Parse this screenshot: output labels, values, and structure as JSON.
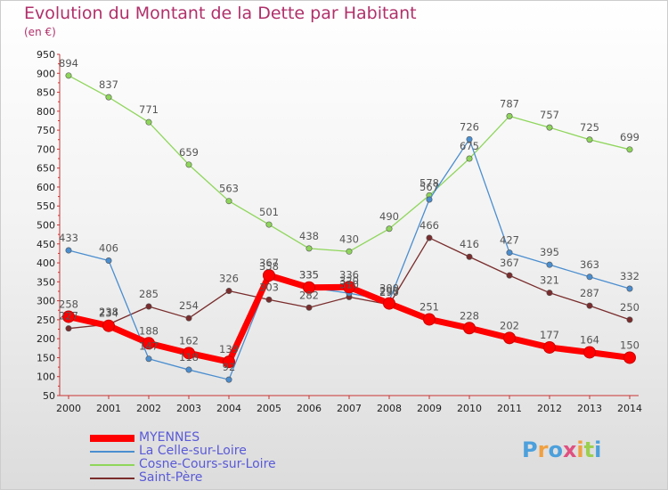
{
  "title": "Evolution du Montant de la Dette par Habitant",
  "subtitle": "(en €)",
  "chart_data": {
    "type": "line",
    "x": [
      "2000",
      "2001",
      "2002",
      "2003",
      "2004",
      "2005",
      "2006",
      "2007",
      "2008",
      "2009",
      "2010",
      "2011",
      "2012",
      "2013",
      "2014"
    ],
    "ylim": [
      50,
      950
    ],
    "yticks": [
      50,
      100,
      150,
      200,
      250,
      300,
      350,
      400,
      450,
      500,
      550,
      600,
      650,
      700,
      750,
      800,
      850,
      900,
      950
    ],
    "grid": false,
    "legend_position": "bottom-left",
    "series": [
      {
        "name": "MYENNES",
        "color": "#ff0000",
        "values": [
          258,
          234,
          188,
          162,
          139,
          367,
          335,
          336,
          293,
          251,
          228,
          202,
          177,
          164,
          150
        ]
      },
      {
        "name": "La Celle-sur-Loire",
        "color": "#4a8ed0",
        "values": [
          433,
          406,
          147,
          118,
          92,
          358,
          335,
          320,
          300,
          567,
          726,
          427,
          395,
          363,
          332
        ]
      },
      {
        "name": "Cosne-Cours-sur-Loire",
        "color": "#8ed65a",
        "values": [
          894,
          837,
          771,
          659,
          563,
          501,
          438,
          430,
          490,
          578,
          675,
          787,
          757,
          725,
          699
        ]
      },
      {
        "name": "Saint-Père",
        "color": "#7a2c2c",
        "values": [
          227,
          238,
          285,
          254,
          326,
          303,
          282,
          310,
          290,
          466,
          416,
          367,
          321,
          287,
          250
        ]
      }
    ]
  },
  "logo": {
    "text": "Proxiti",
    "colors": [
      "#4ca0dc",
      "#f0a040",
      "#4ca0dc",
      "#e05080",
      "#f0a040",
      "#9ccf50",
      "#4ca0dc"
    ]
  }
}
